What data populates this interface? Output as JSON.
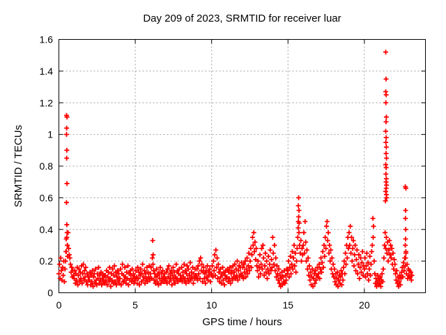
{
  "figure": {
    "background": "#ffffff",
    "border_color": "#000000",
    "grid_color": "#9e9e9e",
    "marker_color": "#ff0000",
    "text_color": "#000000"
  },
  "chart_data": {
    "type": "scatter",
    "title": "Day 209 of 2023, SRMTID for receiver luar",
    "xlabel": "GPS time / hours",
    "ylabel": "SRMTID / TECUs",
    "xlim": [
      0,
      24
    ],
    "ylim": [
      0,
      1.6
    ],
    "xtick_values": [
      0,
      5,
      10,
      15,
      20
    ],
    "xtick_labels": [
      "0",
      "5",
      "10",
      "15",
      "20"
    ],
    "ytick_values": [
      0,
      0.2,
      0.4,
      0.6,
      0.8,
      1.0,
      1.2,
      1.4,
      1.6
    ],
    "ytick_labels": [
      "0",
      "0.2",
      "0.4",
      "0.6",
      "0.8",
      "1",
      "1.2",
      "1.4",
      "1.6"
    ],
    "grid": true,
    "legend": "none",
    "marker": "plus",
    "series": [
      {
        "name": "SRMTID",
        "color": "#ff0000",
        "runs": [
          {
            "x0": 0.0,
            "dx": 0.04,
            "scale": 0.01,
            "y": [
              12,
              18,
              9,
              22,
              14,
              8,
              16,
              11,
              20,
              7,
              15,
              20,
              26,
              35,
              30,
              38,
              28,
              24,
              22,
              18,
              13,
              16,
              10,
              14,
              11,
              9,
              14,
              6,
              12,
              8,
              16,
              5,
              11,
              15,
              7,
              13,
              9,
              17,
              6,
              12,
              18,
              8,
              14,
              10,
              16,
              7,
              12,
              5,
              10,
              8,
              8,
              13,
              5,
              11,
              7,
              14,
              4,
              10,
              12,
              6,
              15,
              8,
              5,
              12,
              9,
              16,
              6,
              11,
              8,
              13,
              5,
              9,
              12,
              7,
              10,
              6,
              11,
              8,
              14,
              5,
              10,
              13,
              7,
              16,
              9,
              4,
              12,
              8,
              15,
              6,
              11,
              17,
              7,
              13,
              5,
              10,
              14,
              8,
              12,
              6,
              9,
              15,
              5,
              12,
              18,
              7,
              11,
              8,
              16,
              10,
              6,
              13,
              9,
              17,
              5,
              12,
              8,
              14,
              11,
              7,
              15,
              9,
              12,
              6,
              10,
              8,
              14,
              10,
              6,
              16,
              9,
              13,
              5,
              11,
              15,
              7,
              12,
              18,
              8,
              10,
              14,
              6,
              12,
              9,
              16,
              7,
              13,
              10,
              17,
              8,
              12,
              16,
              9,
              22,
              18,
              14,
              8,
              12,
              6,
              10,
              15,
              7,
              11,
              5,
              13,
              9,
              16,
              6,
              12,
              8,
              14,
              10,
              7,
              12,
              9,
              8,
              13,
              6,
              15,
              10,
              17,
              7,
              12,
              9,
              14,
              5,
              11,
              16,
              8,
              13,
              6,
              10,
              18,
              9,
              14,
              7,
              12,
              15,
              8,
              11,
              9,
              16,
              7,
              13,
              10,
              18,
              8,
              14,
              6,
              12,
              17,
              9,
              15,
              7,
              11,
              19,
              8,
              13,
              10,
              16,
              6,
              12,
              9,
              15,
              11,
              10,
              15,
              8,
              17,
              12,
              20,
              9,
              22,
              14,
              18,
              7,
              13,
              16,
              9,
              12,
              6,
              14,
              10,
              17,
              8,
              13,
              11,
              15,
              7,
              12,
              12,
              17,
              10,
              20,
              14,
              24,
              11,
              27,
              16,
              22,
              9,
              18,
              13,
              7,
              15,
              10,
              6,
              12,
              16,
              8,
              13,
              5,
              11,
              14,
              9,
              10,
              15,
              7,
              13,
              9,
              16,
              6,
              12,
              14,
              8,
              17,
              10,
              13,
              18,
              9,
              15,
              11,
              20,
              8,
              14,
              17,
              10,
              16,
              12,
              19,
              11,
              16,
              9,
              18,
              13,
              20,
              10,
              15,
              22,
              12,
              17,
              25,
              14,
              20,
              28,
              16,
              24,
              35,
              30,
              38,
              26,
              32,
              21,
              28,
              17,
              14,
              20,
              10,
              16,
              24,
              12,
              18,
              28,
              15,
              30,
              22,
              11,
              17,
              25,
              13,
              20,
              9,
              15,
              23,
              12,
              18,
              27,
              14,
              21,
              16,
              35,
              25,
              18,
              30,
              14,
              22,
              10,
              17,
              12,
              8,
              15,
              6,
              11,
              4,
              9,
              13,
              5,
              10,
              7,
              14,
              6,
              11,
              8,
              15,
              12,
              14,
              20,
              10,
              16,
              23,
              12,
              18,
              26,
              15,
              22,
              30,
              17,
              25,
              13,
              20,
              28,
              35,
              45,
              38,
              30,
              25,
              33,
              20,
              28,
              24,
              30,
              38,
              25,
              45,
              32,
              20,
              27,
              15,
              22,
              11,
              17,
              8,
              13,
              5,
              10,
              15,
              4,
              9,
              12,
              6,
              14,
              8,
              11,
              16,
              10,
              12,
              18,
              9,
              15,
              22,
              13,
              19,
              26,
              16,
              30,
              23,
              35,
              28,
              42,
              45,
              33,
              38,
              25,
              30,
              20,
              27,
              15,
              22,
              12,
              18,
              10,
              15,
              7,
              12,
              5,
              9,
              13,
              4,
              8,
              11,
              6,
              10,
              14,
              5,
              12,
              8,
              16,
              20,
              12,
              25,
              18,
              30,
              22,
              35,
              28,
              38,
              30,
              42,
              25,
              35,
              20,
              28,
              33,
              17,
              24,
              30,
              14,
              21,
              27,
              12,
              18,
              24,
              9,
              16,
              22,
              13,
              19,
              26,
              11,
              17,
              15,
              22,
              10,
              17,
              25,
              12,
              19,
              8,
              15,
              23,
              11,
              18,
              26,
              30,
              47,
              42,
              20,
              12,
              6,
              9,
              4,
              7,
              11,
              5,
              8,
              6,
              10,
              4,
              8,
              12,
              7,
              15,
              22,
              30,
              38,
              28,
              35,
              25,
              32,
              20,
              27,
              33,
              24,
              30,
              22,
              28,
              18,
              25,
              15,
              21,
              18,
              12,
              8,
              14,
              6,
              10,
              4,
              7,
              11,
              5,
              9,
              13,
              16,
              10,
              19,
              14,
              22,
              17,
              25,
              12,
              18,
              9,
              15,
              11,
              14,
              10,
              13,
              8,
              11
            ]
          }
        ],
        "points": [
          [
            0.5,
            1.12
          ],
          [
            0.53,
            1.11
          ],
          [
            0.51,
            1.04
          ],
          [
            0.5,
            1.0
          ],
          [
            0.52,
            0.9
          ],
          [
            0.51,
            0.85
          ],
          [
            0.53,
            0.69
          ],
          [
            0.5,
            0.57
          ],
          [
            0.52,
            0.43
          ],
          [
            0.54,
            0.38
          ],
          [
            0.48,
            0.34
          ],
          [
            0.55,
            0.3
          ],
          [
            0.46,
            0.26
          ],
          [
            0.57,
            0.23
          ],
          [
            6.14,
            0.33
          ],
          [
            6.17,
            0.24
          ],
          [
            15.7,
            0.6
          ],
          [
            15.68,
            0.55
          ],
          [
            15.72,
            0.52
          ],
          [
            15.7,
            0.48
          ],
          [
            15.73,
            0.44
          ],
          [
            15.67,
            0.41
          ],
          [
            20.58,
            0.35
          ],
          [
            21.4,
            1.52
          ],
          [
            21.42,
            1.35
          ],
          [
            21.4,
            1.27
          ],
          [
            21.43,
            1.25
          ],
          [
            21.41,
            1.2
          ],
          [
            21.44,
            1.11
          ],
          [
            21.42,
            1.08
          ],
          [
            21.4,
            1.02
          ],
          [
            21.43,
            0.98
          ],
          [
            21.41,
            0.95
          ],
          [
            21.44,
            0.92
          ],
          [
            21.42,
            0.88
          ],
          [
            21.45,
            0.85
          ],
          [
            21.4,
            0.81
          ],
          [
            21.43,
            0.79
          ],
          [
            21.41,
            0.75
          ],
          [
            21.44,
            0.72
          ],
          [
            21.42,
            0.7
          ],
          [
            21.45,
            0.68
          ],
          [
            21.43,
            0.66
          ],
          [
            21.4,
            0.64
          ],
          [
            21.44,
            0.62
          ],
          [
            21.46,
            0.6
          ],
          [
            21.38,
            0.58
          ],
          [
            22.68,
            0.67
          ],
          [
            22.72,
            0.66
          ],
          [
            22.7,
            0.52
          ],
          [
            22.69,
            0.47
          ],
          [
            22.71,
            0.4
          ],
          [
            22.7,
            0.34
          ],
          [
            22.68,
            0.3
          ],
          [
            22.72,
            0.26
          ],
          [
            22.7,
            0.22
          ]
        ]
      }
    ]
  }
}
